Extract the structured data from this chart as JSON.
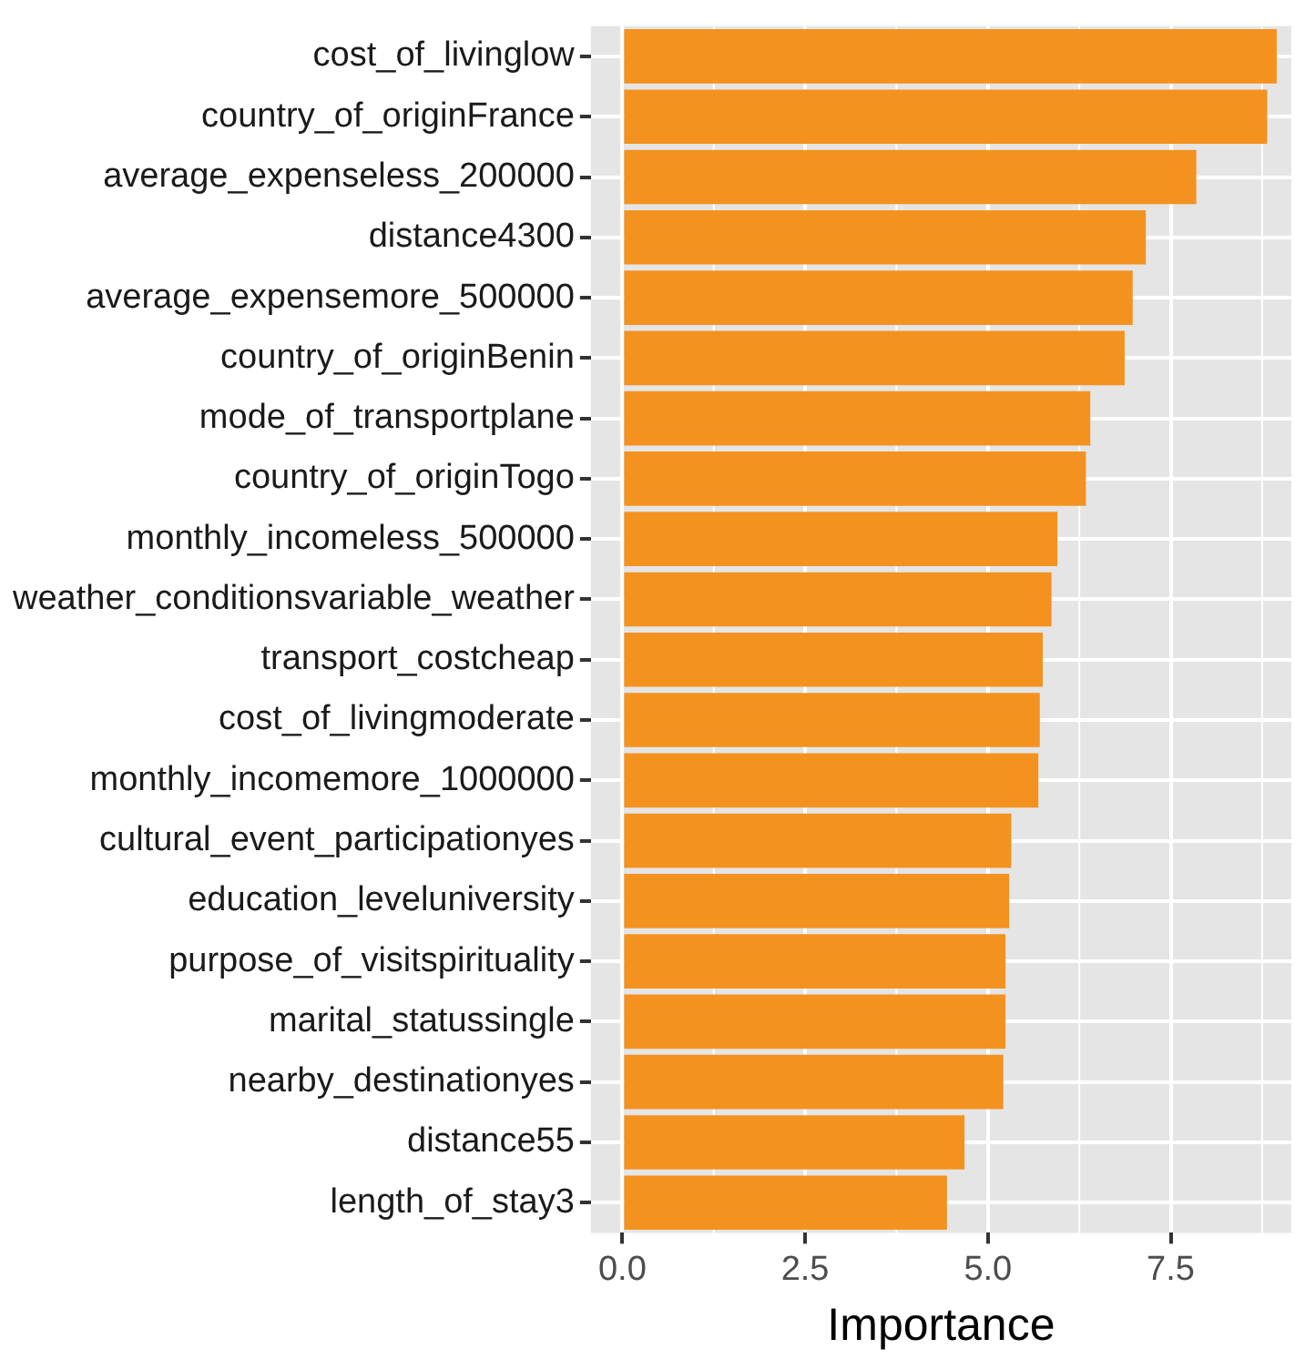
{
  "chart_data": {
    "type": "bar",
    "orientation": "horizontal",
    "xlabel": "Importance",
    "categories": [
      "cost_of_livinglow",
      "country_of_originFrance",
      "average_expenseless_200000",
      "distance4300",
      "average_expensemore_500000",
      "country_of_originBenin",
      "mode_of_transportplane",
      "country_of_originTogo",
      "monthly_incomeless_500000",
      "weather_conditionsvariable_weather",
      "transport_costcheap",
      "cost_of_livingmoderate",
      "monthly_incomemore_1000000",
      "cultural_event_participationyes",
      "education_leveluniversity",
      "purpose_of_visitspirituality",
      "marital_statussingle",
      "nearby_destinationyes",
      "distance55",
      "length_of_stay3"
    ],
    "values": [
      8.95,
      8.82,
      7.85,
      7.16,
      6.98,
      6.87,
      6.4,
      6.34,
      5.95,
      5.87,
      5.75,
      5.71,
      5.69,
      5.32,
      5.29,
      5.24,
      5.24,
      5.21,
      4.68,
      4.44
    ],
    "color": "#f4921f",
    "xlim": [
      -0.43,
      9.15
    ],
    "xticks": [
      {
        "value": 0,
        "label": "0.0"
      },
      {
        "value": 2.5,
        "label": "2.5"
      },
      {
        "value": 5,
        "label": "5.0"
      },
      {
        "value": 7.5,
        "label": "7.5"
      }
    ],
    "grid": true,
    "legend": false
  }
}
